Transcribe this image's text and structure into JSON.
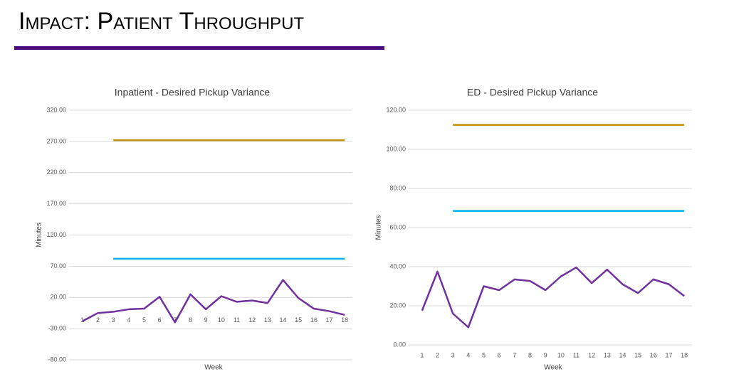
{
  "title": "Impact: Patient Throughput",
  "chart_data": [
    {
      "type": "line",
      "title": "Inpatient - Desired Pickup Variance",
      "xlabel": "Week",
      "ylabel": "Minutes",
      "categories": [
        "1",
        "2",
        "3",
        "4",
        "5",
        "6",
        "7",
        "8",
        "9",
        "10",
        "11",
        "12",
        "13",
        "14",
        "15",
        "16",
        "17",
        "18"
      ],
      "series": [
        {
          "color": "#7030a0",
          "values": [
            -18,
            -5,
            -3,
            1,
            2,
            21,
            -20,
            25,
            1,
            22,
            13,
            15,
            11,
            48,
            19,
            2,
            -2,
            -8
          ]
        },
        {
          "color": "#bf9000",
          "values": [
            null,
            null,
            272,
            272,
            272,
            272,
            272,
            272,
            272,
            272,
            272,
            272,
            272,
            272,
            272,
            272,
            272,
            272
          ]
        },
        {
          "color": "#00b0f0",
          "values": [
            null,
            null,
            82,
            82,
            82,
            82,
            82,
            82,
            82,
            82,
            82,
            82,
            82,
            82,
            82,
            82,
            82,
            82
          ]
        }
      ],
      "ylim": [
        -80,
        320
      ],
      "yticks": [
        {
          "value": -80,
          "label": "-80.00"
        },
        {
          "value": -30,
          "label": "-30.00"
        },
        {
          "value": 20,
          "label": "20.00"
        },
        {
          "value": 70,
          "label": "70.00"
        },
        {
          "value": 120,
          "label": "120.00"
        },
        {
          "value": 170,
          "label": "170.00"
        },
        {
          "value": 220,
          "label": "220.00"
        },
        {
          "value": 270,
          "label": "270.00"
        },
        {
          "value": 320,
          "label": "320.00"
        }
      ],
      "grid": true
    },
    {
      "type": "line",
      "title": "ED - Desired Pickup Variance",
      "xlabel": "Week",
      "ylabel": "Minutes",
      "categories": [
        "1",
        "2",
        "3",
        "4",
        "5",
        "6",
        "7",
        "8",
        "9",
        "10",
        "11",
        "12",
        "13",
        "14",
        "15",
        "16",
        "17",
        "18"
      ],
      "series": [
        {
          "color": "#7030a0",
          "values": [
            17.5,
            37.5,
            16,
            9,
            30,
            28,
            33.5,
            32.7,
            28,
            35,
            39.6,
            31.6,
            38.5,
            31,
            26.5,
            33.5,
            31,
            25
          ]
        },
        {
          "color": "#bf9000",
          "values": [
            null,
            null,
            112.5,
            112.5,
            112.5,
            112.5,
            112.5,
            112.5,
            112.5,
            112.5,
            112.5,
            112.5,
            112.5,
            112.5,
            112.5,
            112.5,
            112.5,
            112.5
          ]
        },
        {
          "color": "#00b0f0",
          "values": [
            null,
            null,
            68.5,
            68.5,
            68.5,
            68.5,
            68.5,
            68.5,
            68.5,
            68.5,
            68.5,
            68.5,
            68.5,
            68.5,
            68.5,
            68.5,
            68.5,
            68.5
          ]
        }
      ],
      "ylim": [
        0,
        120
      ],
      "yticks": [
        {
          "value": 0,
          "label": "0.00"
        },
        {
          "value": 20,
          "label": "20.00"
        },
        {
          "value": 40,
          "label": "40.00"
        },
        {
          "value": 60,
          "label": "60.00"
        },
        {
          "value": 80,
          "label": "80.00"
        },
        {
          "value": 100,
          "label": "100.00"
        },
        {
          "value": 120,
          "label": "120.00"
        }
      ],
      "grid": true
    }
  ]
}
